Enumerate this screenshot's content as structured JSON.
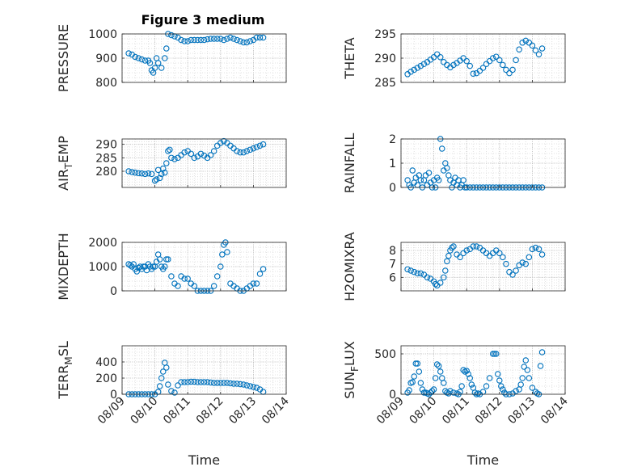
{
  "figure": {
    "title": "Figure 3 medium",
    "marker_color": "#0072bd",
    "grid": "major and minor, dotted"
  },
  "chart_data": [
    {
      "type": "scatter",
      "panel": "left-1",
      "xlabel": "",
      "ylabel": "PRESSURE",
      "ylim": [
        800,
        1000
      ],
      "yticks": [
        "800",
        "900",
        "1000"
      ],
      "xlim": [
        0,
        5
      ],
      "xticks": [
        "08/09",
        "08/10",
        "08/11",
        "08/12",
        "08/13",
        "08/14"
      ],
      "x": [
        0.2,
        0.3,
        0.4,
        0.5,
        0.6,
        0.7,
        0.8,
        0.85,
        0.9,
        0.95,
        1.0,
        1.05,
        1.1,
        1.2,
        1.3,
        1.35,
        1.4,
        1.5,
        1.6,
        1.7,
        1.8,
        1.9,
        2.0,
        2.1,
        2.2,
        2.3,
        2.4,
        2.5,
        2.6,
        2.7,
        2.8,
        2.9,
        3.0,
        3.1,
        3.2,
        3.3,
        3.4,
        3.5,
        3.6,
        3.7,
        3.8,
        3.9,
        4.0,
        4.1,
        4.2,
        4.3
      ],
      "y": [
        920,
        915,
        905,
        900,
        895,
        890,
        890,
        880,
        850,
        840,
        860,
        900,
        880,
        860,
        900,
        940,
        1000,
        995,
        990,
        985,
        975,
        970,
        970,
        975,
        975,
        975,
        975,
        975,
        978,
        980,
        980,
        980,
        980,
        975,
        980,
        985,
        980,
        975,
        970,
        965,
        965,
        970,
        975,
        985,
        985,
        985
      ]
    },
    {
      "type": "scatter",
      "panel": "right-1",
      "xlabel": "",
      "ylabel": "THETA",
      "ylim": [
        285,
        295
      ],
      "yticks": [
        "285",
        "290",
        "295"
      ],
      "xlim": [
        0,
        5
      ],
      "xticks": [
        "08/09",
        "08/10",
        "08/11",
        "08/12",
        "08/13",
        "08/14"
      ],
      "x": [
        0.2,
        0.3,
        0.4,
        0.5,
        0.6,
        0.7,
        0.8,
        0.9,
        1.0,
        1.1,
        1.2,
        1.3,
        1.4,
        1.5,
        1.6,
        1.7,
        1.8,
        1.9,
        2.0,
        2.1,
        2.2,
        2.3,
        2.4,
        2.5,
        2.6,
        2.7,
        2.8,
        2.9,
        3.0,
        3.1,
        3.2,
        3.3,
        3.4,
        3.5,
        3.6,
        3.7,
        3.8,
        3.9,
        4.0,
        4.1,
        4.2,
        4.3
      ],
      "y": [
        286.7,
        287.2,
        287.6,
        288.0,
        288.4,
        288.8,
        289.2,
        289.7,
        290.2,
        290.8,
        290.2,
        289.2,
        288.6,
        288.1,
        288.6,
        289.0,
        289.5,
        290.0,
        289.4,
        288.4,
        286.8,
        286.9,
        287.4,
        288.0,
        288.8,
        289.4,
        290.0,
        290.3,
        289.6,
        288.6,
        287.6,
        286.9,
        287.6,
        289.6,
        291.8,
        293.2,
        293.6,
        293.2,
        292.6,
        291.6,
        290.8,
        292.0
      ]
    },
    {
      "type": "scatter",
      "panel": "left-2",
      "xlabel": "",
      "ylabel": "AIR_TEMP",
      "ylim": [
        274,
        292
      ],
      "yticks": [
        "280",
        "285",
        "290"
      ],
      "xlim": [
        0,
        5
      ],
      "xticks": [
        "08/09",
        "08/10",
        "08/11",
        "08/12",
        "08/13",
        "08/14"
      ],
      "x": [
        0.2,
        0.3,
        0.4,
        0.5,
        0.6,
        0.7,
        0.8,
        0.9,
        1.0,
        1.05,
        1.1,
        1.15,
        1.2,
        1.25,
        1.3,
        1.35,
        1.4,
        1.45,
        1.5,
        1.6,
        1.7,
        1.8,
        1.9,
        2.0,
        2.1,
        2.2,
        2.3,
        2.4,
        2.5,
        2.6,
        2.7,
        2.8,
        2.9,
        3.0,
        3.1,
        3.2,
        3.3,
        3.4,
        3.5,
        3.6,
        3.7,
        3.8,
        3.9,
        4.0,
        4.1,
        4.2,
        4.3
      ],
      "y": [
        280.0,
        279.7,
        279.5,
        279.3,
        279.2,
        279.0,
        279.2,
        279.0,
        276.5,
        277.0,
        280.5,
        277.5,
        279.0,
        281.0,
        279.5,
        283.0,
        287.5,
        288.0,
        285.0,
        284.5,
        285.0,
        286.0,
        287.0,
        287.5,
        286.5,
        285.0,
        285.5,
        286.5,
        285.8,
        285.0,
        286.0,
        287.5,
        289.5,
        290.5,
        291.2,
        290.5,
        289.5,
        288.5,
        287.5,
        287.0,
        287.0,
        287.5,
        288.0,
        288.5,
        289.0,
        289.5,
        290.0
      ]
    },
    {
      "type": "scatter",
      "panel": "right-2",
      "xlabel": "",
      "ylabel": "RAINFALL",
      "ylim": [
        0,
        2
      ],
      "yticks": [
        "0",
        "1",
        "2"
      ],
      "xlim": [
        0,
        5
      ],
      "xticks": [
        "08/09",
        "08/10",
        "08/11",
        "08/12",
        "08/13",
        "08/14"
      ],
      "x": [
        0.2,
        0.25,
        0.3,
        0.35,
        0.4,
        0.45,
        0.5,
        0.55,
        0.6,
        0.65,
        0.7,
        0.75,
        0.8,
        0.85,
        0.9,
        0.95,
        1.0,
        1.05,
        1.1,
        1.15,
        1.2,
        1.25,
        1.3,
        1.35,
        1.4,
        1.45,
        1.5,
        1.55,
        1.6,
        1.65,
        1.7,
        1.75,
        1.8,
        1.85,
        1.9,
        1.95,
        2.0,
        2.1,
        2.2,
        2.3,
        2.4,
        2.5,
        2.6,
        2.7,
        2.8,
        2.9,
        3.0,
        3.1,
        3.2,
        3.3,
        3.4,
        3.5,
        3.6,
        3.7,
        3.8,
        3.9,
        4.0,
        4.1,
        4.2,
        4.3
      ],
      "y": [
        0.3,
        0.1,
        0.0,
        0.7,
        0.2,
        0.4,
        0.1,
        0.5,
        0.3,
        0.0,
        0.3,
        0.5,
        0.1,
        0.6,
        0.2,
        0.0,
        0.3,
        0.0,
        0.4,
        0.3,
        2.0,
        1.6,
        0.7,
        1.0,
        0.8,
        0.5,
        0.3,
        0.0,
        0.2,
        0.4,
        0.1,
        0.3,
        0.0,
        0.1,
        0.3,
        0.0,
        0.0,
        0.0,
        0.0,
        0.0,
        0.0,
        0.0,
        0.0,
        0.0,
        0.0,
        0.0,
        0.0,
        0.0,
        0.0,
        0.0,
        0.0,
        0.0,
        0.0,
        0.0,
        0.0,
        0.0,
        0.0,
        0.0,
        0.0,
        0.0
      ]
    },
    {
      "type": "scatter",
      "panel": "left-3",
      "xlabel": "",
      "ylabel": "MIXDEPTH",
      "ylim": [
        0,
        2000
      ],
      "yticks": [
        "0",
        "1000",
        "2000"
      ],
      "xlim": [
        0,
        5
      ],
      "xticks": [
        "08/09",
        "08/10",
        "08/11",
        "08/12",
        "08/13",
        "08/14"
      ],
      "x": [
        0.2,
        0.25,
        0.3,
        0.35,
        0.4,
        0.45,
        0.5,
        0.55,
        0.6,
        0.65,
        0.7,
        0.75,
        0.8,
        0.85,
        0.9,
        0.95,
        1.0,
        1.05,
        1.1,
        1.15,
        1.2,
        1.25,
        1.3,
        1.35,
        1.4,
        1.5,
        1.6,
        1.7,
        1.8,
        1.9,
        2.0,
        2.1,
        2.2,
        2.3,
        2.4,
        2.5,
        2.6,
        2.7,
        2.8,
        2.9,
        3.0,
        3.05,
        3.1,
        3.15,
        3.2,
        3.3,
        3.4,
        3.5,
        3.6,
        3.7,
        3.8,
        3.9,
        4.0,
        4.1,
        4.2,
        4.3
      ],
      "y": [
        1100,
        1050,
        1000,
        1100,
        900,
        800,
        950,
        1000,
        900,
        1000,
        1000,
        850,
        1100,
        1000,
        900,
        1000,
        1000,
        1200,
        1500,
        1300,
        1000,
        900,
        1000,
        1300,
        1300,
        600,
        300,
        200,
        600,
        500,
        500,
        300,
        200,
        0,
        0,
        0,
        0,
        0,
        200,
        600,
        1000,
        1500,
        1900,
        2000,
        1600,
        300,
        200,
        100,
        0,
        0,
        100,
        200,
        300,
        300,
        700,
        900
      ]
    },
    {
      "type": "scatter",
      "panel": "right-3",
      "xlabel": "",
      "ylabel": "H2OMIXRA",
      "ylim": [
        5,
        8.6
      ],
      "yticks": [
        "6",
        "7",
        "8"
      ],
      "xlim": [
        0,
        5
      ],
      "xticks": [
        "08/09",
        "08/10",
        "08/11",
        "08/12",
        "08/13",
        "08/14"
      ],
      "x": [
        0.2,
        0.3,
        0.4,
        0.5,
        0.6,
        0.7,
        0.8,
        0.9,
        1.0,
        1.05,
        1.1,
        1.2,
        1.3,
        1.35,
        1.4,
        1.45,
        1.5,
        1.55,
        1.6,
        1.7,
        1.8,
        1.9,
        2.0,
        2.1,
        2.2,
        2.3,
        2.4,
        2.5,
        2.6,
        2.7,
        2.8,
        2.9,
        3.0,
        3.1,
        3.2,
        3.3,
        3.4,
        3.5,
        3.6,
        3.7,
        3.8,
        3.9,
        4.0,
        4.1,
        4.2,
        4.3
      ],
      "y": [
        6.6,
        6.5,
        6.4,
        6.3,
        6.3,
        6.2,
        6.0,
        5.9,
        5.7,
        5.5,
        5.4,
        5.6,
        6.0,
        6.5,
        7.2,
        7.6,
        8.0,
        8.2,
        8.3,
        7.7,
        7.5,
        7.8,
        8.0,
        8.1,
        8.3,
        8.3,
        8.2,
        8.0,
        7.8,
        7.6,
        7.8,
        8.0,
        7.8,
        7.5,
        7.0,
        6.4,
        6.2,
        6.5,
        6.9,
        7.1,
        7.0,
        7.5,
        8.1,
        8.2,
        8.1,
        7.7
      ]
    },
    {
      "type": "scatter",
      "panel": "left-4",
      "xlabel": "Time",
      "ylabel": "TERR_MSL",
      "ylim": [
        0,
        600
      ],
      "yticks": [
        "0",
        "200",
        "400"
      ],
      "xlim": [
        0,
        5
      ],
      "xticks": [
        "08/09",
        "08/10",
        "08/11",
        "08/12",
        "08/13",
        "08/14"
      ],
      "x": [
        0.2,
        0.3,
        0.4,
        0.5,
        0.6,
        0.7,
        0.8,
        0.9,
        1.0,
        1.1,
        1.15,
        1.2,
        1.25,
        1.3,
        1.35,
        1.4,
        1.5,
        1.6,
        1.7,
        1.8,
        1.9,
        2.0,
        2.1,
        2.2,
        2.3,
        2.4,
        2.5,
        2.6,
        2.7,
        2.8,
        2.9,
        3.0,
        3.1,
        3.2,
        3.3,
        3.4,
        3.5,
        3.6,
        3.7,
        3.8,
        3.9,
        4.0,
        4.1,
        4.2,
        4.3
      ],
      "y": [
        0,
        0,
        0,
        0,
        0,
        0,
        0,
        0,
        0,
        30,
        100,
        200,
        280,
        390,
        330,
        120,
        40,
        20,
        110,
        150,
        150,
        150,
        155,
        155,
        150,
        150,
        150,
        150,
        145,
        140,
        140,
        140,
        140,
        140,
        135,
        130,
        130,
        125,
        120,
        110,
        100,
        90,
        80,
        60,
        30
      ]
    },
    {
      "type": "scatter",
      "panel": "right-4",
      "xlabel": "Time",
      "ylabel": "SUN_FLUX",
      "ylim": [
        0,
        600
      ],
      "yticks": [
        "0",
        "500"
      ],
      "xlim": [
        0,
        5
      ],
      "xticks": [
        "08/09",
        "08/10",
        "08/11",
        "08/12",
        "08/13",
        "08/14"
      ],
      "x": [
        0.2,
        0.25,
        0.3,
        0.35,
        0.4,
        0.45,
        0.5,
        0.55,
        0.6,
        0.65,
        0.7,
        0.75,
        0.8,
        0.85,
        0.9,
        0.95,
        1.0,
        1.05,
        1.1,
        1.15,
        1.2,
        1.25,
        1.3,
        1.35,
        1.4,
        1.45,
        1.5,
        1.6,
        1.7,
        1.75,
        1.8,
        1.85,
        1.9,
        1.95,
        2.0,
        2.05,
        2.1,
        2.15,
        2.2,
        2.25,
        2.3,
        2.35,
        2.4,
        2.5,
        2.6,
        2.7,
        2.8,
        2.85,
        2.9,
        2.95,
        3.0,
        3.05,
        3.1,
        3.15,
        3.2,
        3.3,
        3.4,
        3.5,
        3.6,
        3.65,
        3.7,
        3.75,
        3.8,
        3.85,
        3.9,
        4.0,
        4.1,
        4.15,
        4.2,
        4.25,
        4.3
      ],
      "y": [
        20,
        50,
        140,
        150,
        220,
        380,
        380,
        280,
        140,
        60,
        20,
        20,
        10,
        0,
        20,
        40,
        60,
        200,
        370,
        350,
        280,
        200,
        140,
        40,
        20,
        10,
        40,
        20,
        10,
        0,
        30,
        100,
        300,
        280,
        290,
        250,
        200,
        120,
        80,
        20,
        0,
        10,
        0,
        30,
        100,
        200,
        500,
        500,
        500,
        250,
        170,
        100,
        60,
        20,
        0,
        0,
        10,
        40,
        60,
        120,
        200,
        340,
        420,
        300,
        200,
        80,
        30,
        10,
        0,
        350,
        520
      ]
    }
  ]
}
